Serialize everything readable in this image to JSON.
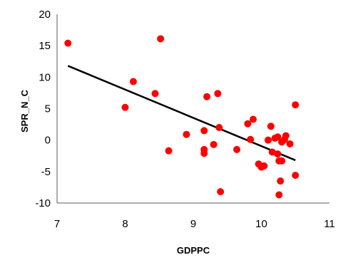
{
  "chart_data": {
    "type": "scatter",
    "title": "",
    "xlabel": "GDPPC",
    "ylabel": "SPR_N_C",
    "xlim": [
      7,
      11
    ],
    "ylim": [
      -10,
      20
    ],
    "xticks": [
      "7",
      "8",
      "9",
      "10",
      "11"
    ],
    "yticks": [
      "-10",
      "-5",
      "0",
      "5",
      "10",
      "15",
      "20"
    ],
    "grid": false,
    "legend": "none",
    "series": [
      {
        "marker_color": "#ff0000",
        "points": [
          [
            7.16,
            15.4
          ],
          [
            8.0,
            5.2
          ],
          [
            8.12,
            9.3
          ],
          [
            8.44,
            7.4
          ],
          [
            8.52,
            16.1
          ],
          [
            8.64,
            -1.7
          ],
          [
            8.9,
            0.9
          ],
          [
            9.16,
            1.5
          ],
          [
            9.16,
            -1.5
          ],
          [
            9.16,
            -2.1
          ],
          [
            9.2,
            6.9
          ],
          [
            9.3,
            -0.7
          ],
          [
            9.36,
            7.4
          ],
          [
            9.38,
            2.0
          ],
          [
            9.4,
            -8.2
          ],
          [
            9.64,
            -1.5
          ],
          [
            9.8,
            2.6
          ],
          [
            9.84,
            0.1
          ],
          [
            9.88,
            3.3
          ],
          [
            9.96,
            -3.8
          ],
          [
            10.0,
            -4.3
          ],
          [
            10.04,
            -4.1
          ],
          [
            10.1,
            0.0
          ],
          [
            10.14,
            2.2
          ],
          [
            10.16,
            -1.9
          ],
          [
            10.2,
            0.3
          ],
          [
            10.24,
            0.5
          ],
          [
            10.24,
            -2.2
          ],
          [
            10.26,
            -3.3
          ],
          [
            10.26,
            -8.7
          ],
          [
            10.28,
            -6.5
          ],
          [
            10.3,
            -0.3
          ],
          [
            10.3,
            -3.3
          ],
          [
            10.34,
            0.1
          ],
          [
            10.36,
            0.7
          ],
          [
            10.42,
            -0.6
          ],
          [
            10.5,
            5.6
          ],
          [
            10.5,
            -5.6
          ]
        ]
      }
    ],
    "trendline": {
      "color": "#000000",
      "from": [
        7.16,
        11.8
      ],
      "to": [
        10.5,
        -3.2
      ]
    }
  }
}
